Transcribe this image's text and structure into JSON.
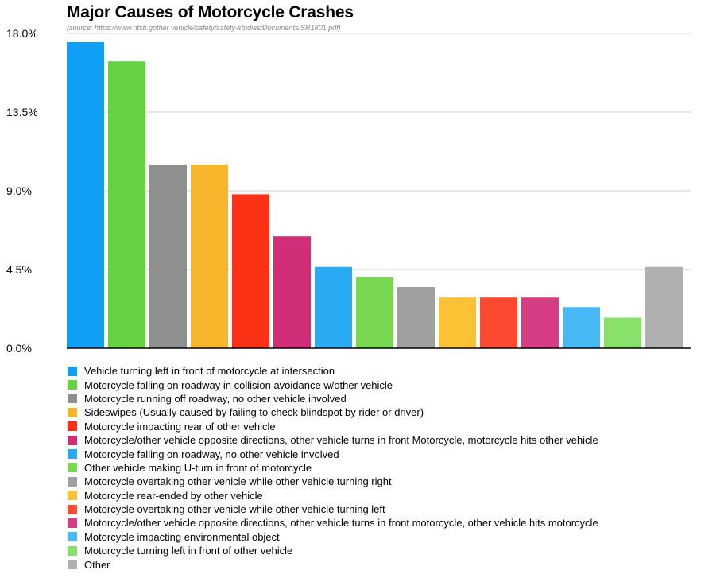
{
  "chart_data": {
    "type": "bar",
    "title": "Major Causes of Motorcycle Crashes",
    "subtitle": "(source: https://www.ntsb.gother vehicle/safety/safety-studies/Documents/SR1801.pdf)",
    "xlabel": "",
    "ylabel": "",
    "ylim": [
      0,
      18
    ],
    "yticks": [
      0,
      4.5,
      9,
      13.5,
      18
    ],
    "ytick_labels": [
      "0.0%",
      "4.5%",
      "9.0%",
      "13.5%",
      "18.0%"
    ],
    "grid": true,
    "legend_position": "bottom",
    "categories": [
      "Vehicle turning left in front of motorcycle at intersection",
      "Motorcycle falling on roadway in collision avoidance w/other vehicle",
      "Motorcycle running off roadway, no other vehicle involved",
      "Sideswipes (Usually caused by failing to check blindspot by rider or driver)",
      "Motorcycle impacting rear of other vehicle",
      "Motorcycle/other vehicle opposite directions, other vehicle turns in front Motorcycle, motorcycle hits other vehicle",
      "Motorcycle falling on roadway, no other vehicle involved",
      "Other vehicle making U-turn in front of motorcycle",
      "Motorcycle overtaking other vehicle while other vehicle turning right",
      "Motorcycle rear-ended by other vehicle",
      "Motorcycle overtaking other vehicle while other vehicle turning left",
      "Motorcycle/other vehicle opposite directions, other vehicle turns in front motorcycle, other vehicle hits motorcycle",
      "Motorcycle impacting environmental object",
      "Motorcycle turning left in front of other vehicle",
      "Other"
    ],
    "values": [
      17.5,
      16.4,
      10.5,
      10.5,
      8.8,
      6.4,
      4.65,
      4.05,
      3.5,
      2.9,
      2.9,
      2.9,
      2.35,
      1.75,
      4.65
    ],
    "colors": [
      "#0fa0f5",
      "#66d242",
      "#8f8f8f",
      "#f7b52b",
      "#fc3116",
      "#d12e78",
      "#29abf4",
      "#79d852",
      "#a0a0a0",
      "#fac234",
      "#fb4a2f",
      "#d63d85",
      "#49b9f6",
      "#89e06a",
      "#b0b0b0"
    ]
  }
}
